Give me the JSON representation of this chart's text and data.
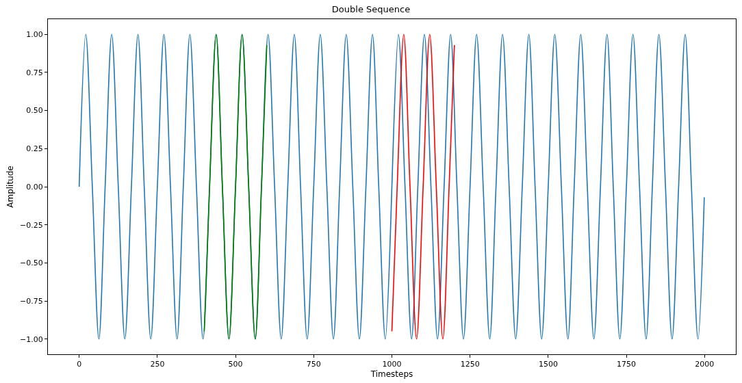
{
  "chart_data": {
    "type": "line",
    "title": "Double Sequence",
    "xlabel": "Timesteps",
    "ylabel": "Amplitude",
    "series": [
      {
        "color": "#1f77b4",
        "x": [
          0,
          21,
          42,
          63,
          83,
          104,
          125,
          146,
          167,
          188,
          208,
          229,
          250,
          271,
          292,
          313,
          333,
          354,
          375,
          396,
          417,
          438,
          458,
          479,
          500,
          521,
          542,
          563,
          583,
          604,
          625,
          646,
          667,
          688,
          708,
          729,
          750,
          771,
          792,
          813,
          833,
          854,
          875,
          896,
          917,
          938,
          958,
          979,
          999,
          1000,
          1021,
          1042,
          1063,
          1083,
          1104,
          1125,
          1146,
          1167,
          1188,
          1208,
          1229,
          1250,
          1271,
          1292,
          1313,
          1333,
          1354,
          1375,
          1396,
          1417,
          1438,
          1458,
          1479,
          1500,
          1521,
          1542,
          1563,
          1583,
          1604,
          1625,
          1646,
          1667,
          1688,
          1708,
          1729,
          1750,
          1771,
          1792,
          1813,
          1833,
          1854,
          1875,
          1896,
          1917,
          1938,
          1958,
          1979,
          1999
        ],
        "values": [
          0,
          1,
          0,
          -1,
          0,
          1,
          0,
          -1,
          0,
          1,
          0,
          -1,
          0,
          1,
          0,
          -1,
          0,
          1,
          0,
          -1,
          0,
          1,
          0,
          -1,
          0,
          1,
          0,
          -1,
          0,
          1,
          0,
          -1,
          0,
          1,
          0,
          -1,
          0,
          1,
          0,
          -1,
          0,
          1,
          0,
          -1,
          0,
          1,
          0,
          -1,
          -0.07,
          0,
          1,
          0,
          -1,
          0,
          1,
          0,
          -1,
          0,
          1,
          0,
          -1,
          0,
          1,
          0,
          -1,
          0,
          1,
          0,
          -1,
          0,
          1,
          0,
          -1,
          0,
          1,
          0,
          -1,
          0,
          1,
          0,
          -1,
          0,
          1,
          0,
          -1,
          0,
          1,
          0,
          -1,
          0,
          1,
          0,
          -1,
          0,
          1,
          0,
          -1,
          -0.07
        ]
      },
      {
        "color": "#008000",
        "x": [
          400,
          417,
          438,
          458,
          479,
          500,
          521,
          542,
          563,
          583,
          600
        ],
        "values": [
          -0.95,
          0,
          1,
          0,
          -1,
          0,
          1,
          0,
          -1,
          0,
          0.93
        ]
      },
      {
        "color": "#ff0000",
        "x": [
          1000,
          1017,
          1038,
          1058,
          1079,
          1100,
          1121,
          1142,
          1163,
          1183,
          1200
        ],
        "values": [
          -0.95,
          0,
          1,
          0,
          -1,
          0,
          1,
          0,
          -1,
          0,
          0.93
        ]
      }
    ],
    "xlim": [
      -100,
      2100
    ],
    "xticks": [
      0,
      250,
      500,
      750,
      1000,
      1250,
      1500,
      1750,
      2000
    ],
    "ylim": [
      -1.1,
      1.1
    ],
    "yticks": [
      {
        "value": -1,
        "label": "−1.00"
      },
      {
        "value": -0.75,
        "label": "−0.75"
      },
      {
        "value": -0.5,
        "label": "−0.50"
      },
      {
        "value": -0.25,
        "label": "−0.25"
      },
      {
        "value": 0,
        "label": "0.00"
      },
      {
        "value": 0.25,
        "label": "0.25"
      },
      {
        "value": 0.5,
        "label": "0.50"
      },
      {
        "value": 0.75,
        "label": "0.75"
      },
      {
        "value": 1,
        "label": "1.00"
      }
    ],
    "line_style": "solid"
  }
}
